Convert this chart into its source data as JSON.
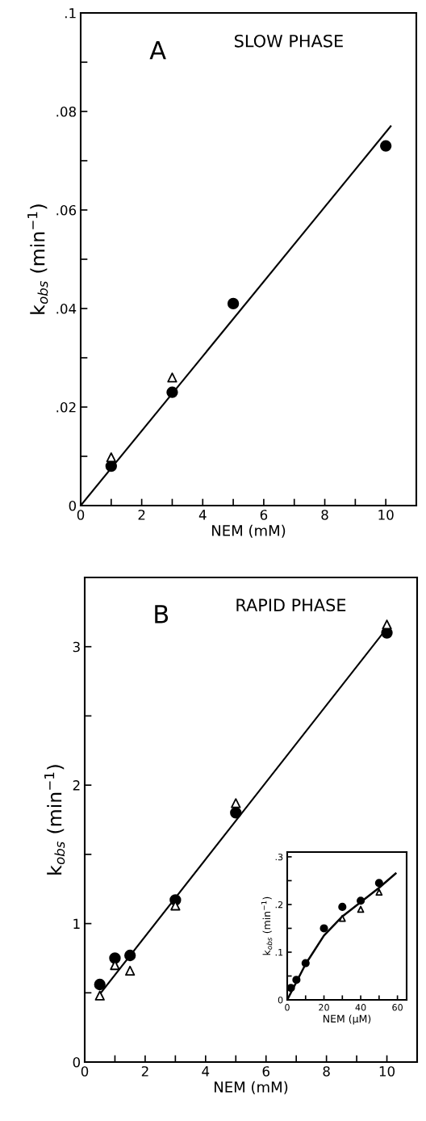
{
  "chart_data": [
    {
      "type": "scatter",
      "title": "SLOW PHASE",
      "annotations": [
        "A"
      ],
      "xlabel": "NEM (mM)",
      "ylabel": "k$_{obs}$ (min$^{−1}$)",
      "xlim": [
        0,
        11
      ],
      "xticks": [
        0,
        {
          "value": 1,
          "label": null
        },
        2,
        {
          "value": 3,
          "label": null
        },
        4,
        {
          "value": 5,
          "label": null
        },
        6,
        {
          "value": 7,
          "label": null
        },
        8,
        {
          "value": 9,
          "label": null
        },
        10
      ],
      "ylim": [
        0,
        0.1
      ],
      "yticks": [
        {
          "value": 0,
          "label": "0"
        },
        {
          "value": 0.01,
          "label": null
        },
        {
          "value": 0.02,
          "label": ".02"
        },
        {
          "value": 0.03,
          "label": null
        },
        {
          "value": 0.04,
          "label": ".04"
        },
        {
          "value": 0.05,
          "label": null
        },
        {
          "value": 0.06,
          "label": ".06"
        },
        {
          "value": 0.07,
          "label": null
        },
        {
          "value": 0.08,
          "label": ".08"
        },
        {
          "value": 0.09,
          "label": null
        },
        {
          "value": 0.1,
          "label": ".1"
        }
      ],
      "grid": false,
      "legend": false,
      "series": [
        {
          "type": "line",
          "marker": "none",
          "color": "#000000",
          "x": [
            0,
            10.16
          ],
          "values": [
            0,
            0.077
          ]
        },
        {
          "marker": "circle",
          "color": "#000000",
          "x": [
            1,
            3,
            5,
            10
          ],
          "values": [
            0.008,
            0.023,
            0.041,
            0.073
          ]
        },
        {
          "marker": "triangle",
          "color": "#000000",
          "x": [
            1,
            3
          ],
          "values": [
            0.0098,
            0.026
          ]
        }
      ]
    },
    {
      "type": "scatter",
      "title": "RAPID PHASE",
      "annotations": [
        "B"
      ],
      "xlabel": "NEM (mM)",
      "ylabel": "k$_{obs}$ (min$^{−1}$)",
      "xlim": [
        0,
        11
      ],
      "xticks": [
        0,
        {
          "value": 1,
          "label": null
        },
        2,
        {
          "value": 3,
          "label": null
        },
        4,
        {
          "value": 5,
          "label": null
        },
        6,
        {
          "value": 7,
          "label": null
        },
        8,
        {
          "value": 9,
          "label": null
        },
        10
      ],
      "ylim": [
        0,
        3.5
      ],
      "yticks": [
        0,
        {
          "value": 0.5,
          "label": null
        },
        1,
        {
          "value": 1.5,
          "label": null
        },
        2,
        {
          "value": 2.5,
          "label": null
        },
        3
      ],
      "grid": false,
      "legend": false,
      "series": [
        {
          "type": "line",
          "marker": "none",
          "color": "#000000",
          "x": [
            0.5,
            10.02
          ],
          "values": [
            0.49,
            3.14
          ]
        },
        {
          "marker": "circle",
          "color": "#000000",
          "x": [
            0.5,
            1,
            1.5,
            3,
            5,
            10
          ],
          "values": [
            0.56,
            0.75,
            0.77,
            1.17,
            1.8,
            3.1
          ]
        },
        {
          "marker": "triangle",
          "color": "#000000",
          "x": [
            0.5,
            1,
            1.5,
            3,
            5,
            10
          ],
          "values": [
            0.48,
            0.7,
            0.66,
            1.13,
            1.87,
            3.16
          ]
        }
      ]
    },
    {
      "type": "scatter",
      "xlabel": "NEM (μM)",
      "ylabel": "k$_{obs}$ (min$^{−1}$)",
      "xlim": [
        0,
        65
      ],
      "xticks": [
        0,
        {
          "value": 10,
          "label": null
        },
        20,
        {
          "value": 30,
          "label": null
        },
        40,
        {
          "value": 50,
          "label": null
        },
        60
      ],
      "ylim": [
        0,
        0.31
      ],
      "yticks": [
        {
          "value": 0,
          "label": "0"
        },
        {
          "value": 0.05,
          "label": null
        },
        {
          "value": 0.1,
          "label": ".1"
        },
        {
          "value": 0.15,
          "label": null
        },
        {
          "value": 0.2,
          "label": ".2"
        },
        {
          "value": 0.25,
          "label": null
        },
        {
          "value": 0.3,
          "label": ".3"
        }
      ],
      "grid": false,
      "legend": false,
      "series": [
        {
          "type": "line",
          "marker": "none",
          "color": "#000000",
          "x": [
            0,
            10,
            20,
            30,
            40,
            50,
            59
          ],
          "values": [
            0,
            0.075,
            0.135,
            0.175,
            0.205,
            0.235,
            0.265
          ]
        },
        {
          "marker": "circle",
          "color": "#000000",
          "x": [
            2,
            5,
            10,
            20,
            30,
            40,
            50
          ],
          "values": [
            0.025,
            0.042,
            0.077,
            0.15,
            0.195,
            0.208,
            0.245
          ]
        },
        {
          "marker": "triangle",
          "color": "#000000",
          "x": [
            30,
            40,
            50
          ],
          "values": [
            0.171,
            0.19,
            0.226
          ]
        }
      ]
    }
  ]
}
